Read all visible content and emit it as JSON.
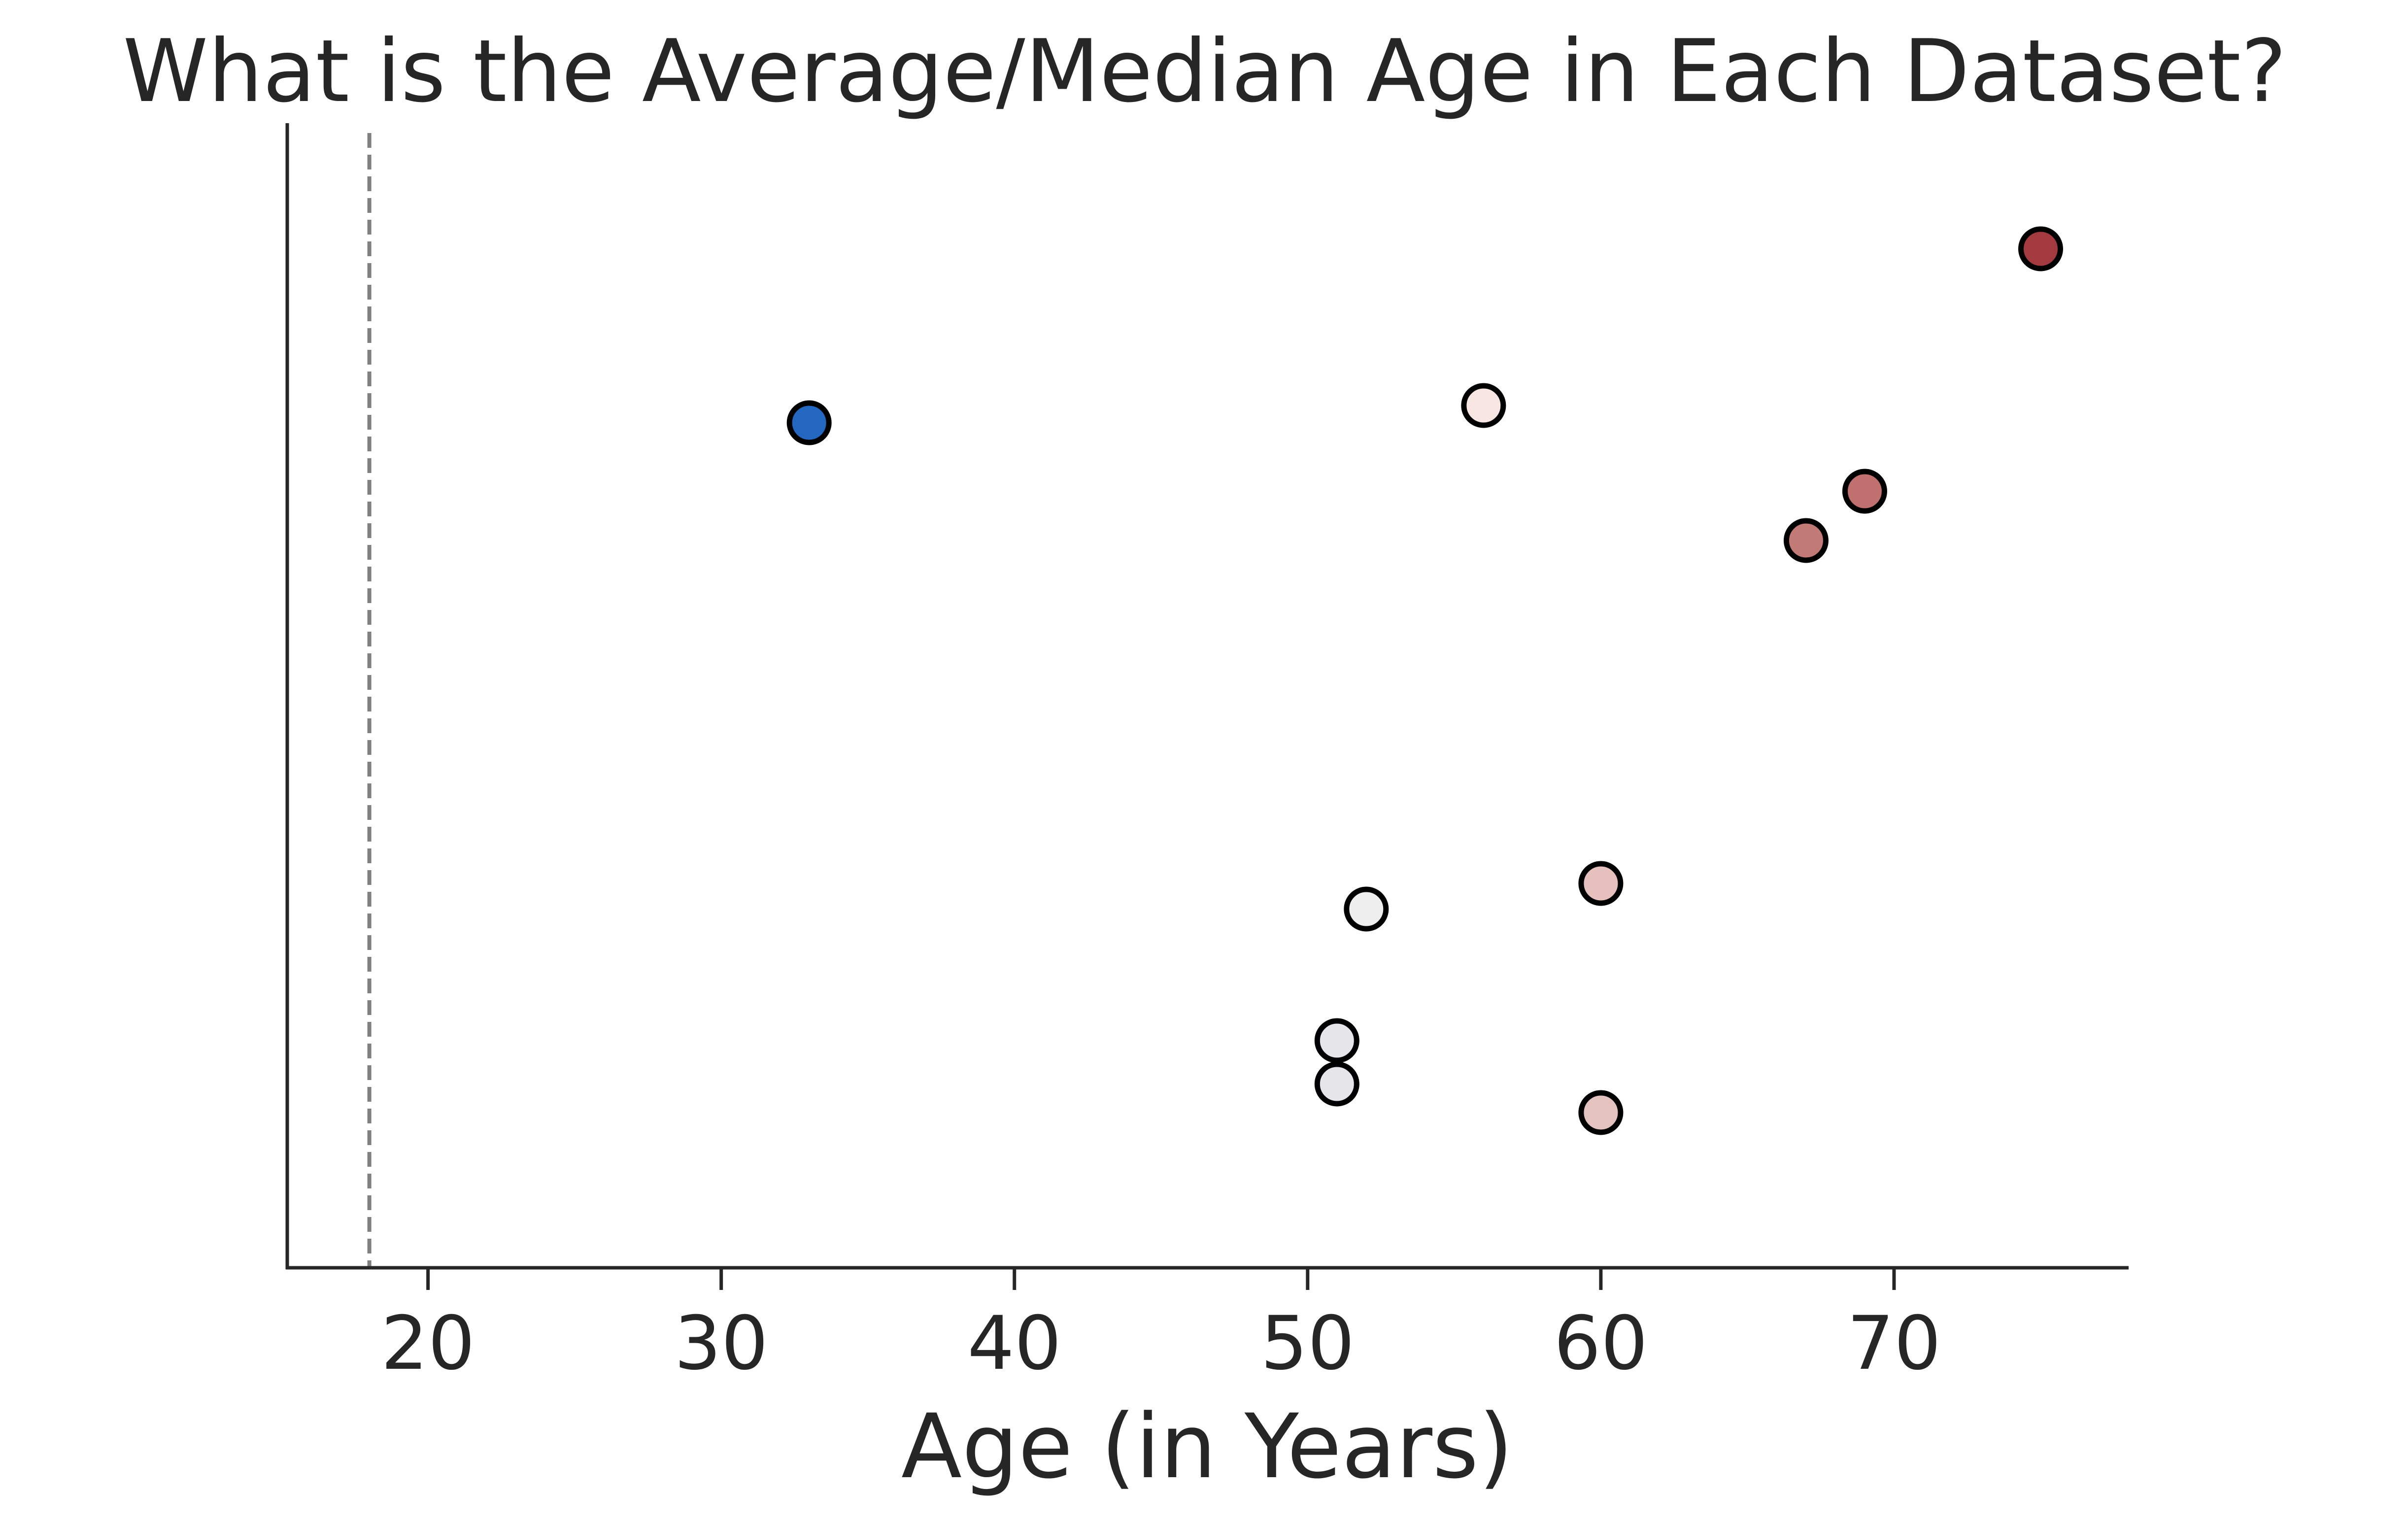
{
  "chart_data": {
    "type": "scatter",
    "title": "What is the Average/Median Age in Each Dataset?",
    "xlabel": "Age (in Years)",
    "ylabel": "",
    "xlim": [
      15.2,
      78
    ],
    "xticks": [
      20,
      30,
      40,
      50,
      60,
      70
    ],
    "reference_line": {
      "x": 18,
      "style": "dashed",
      "color": "#808080"
    },
    "grid": false,
    "points": [
      {
        "x": 75,
        "color": "#a33a3f"
      },
      {
        "x": 33,
        "color": "#2467c0"
      },
      {
        "x": 56,
        "color": "#f8e6e3"
      },
      {
        "x": 69,
        "color": "#c0716f"
      },
      {
        "x": 67,
        "color": "#c27a76"
      },
      {
        "x": 60,
        "color": "#e6c0bc"
      },
      {
        "x": 52,
        "color": "#eeeeef"
      },
      {
        "x": 51,
        "color": "#e5e5ea"
      },
      {
        "x": 51,
        "color": "#e5e5ea"
      },
      {
        "x": 60,
        "color": "#e4c2bf"
      }
    ]
  }
}
